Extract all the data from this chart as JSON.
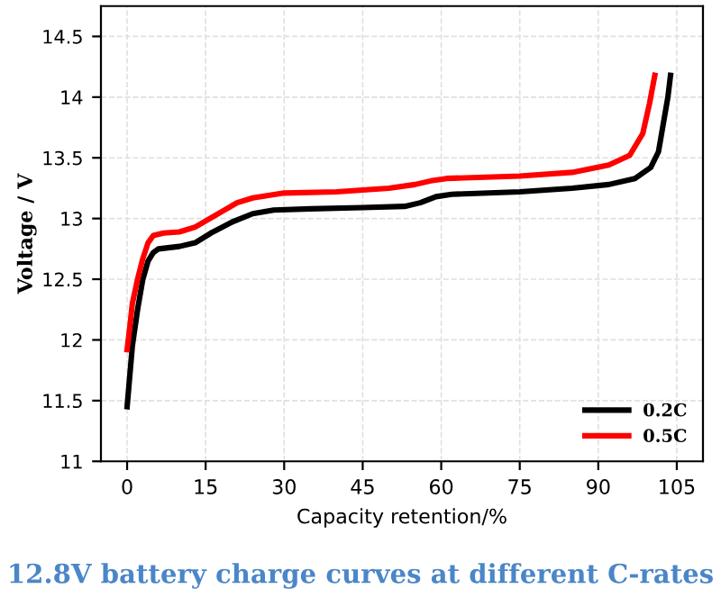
{
  "chart_data": {
    "type": "line",
    "title": "12.8V battery charge curves at different C-rates",
    "xlabel": "Capacity retention/%",
    "ylabel": "Voltage / V",
    "xlim": [
      -5,
      110
    ],
    "xticks": [
      0,
      15,
      30,
      45,
      60,
      75,
      90,
      105
    ],
    "ylim": [
      11,
      14.75
    ],
    "yticks": [
      11,
      11.5,
      12,
      12.5,
      13,
      13.5,
      14,
      14.5
    ],
    "grid": true,
    "legend": "bottom right",
    "line_style": "solid",
    "marker": "none",
    "series": [
      {
        "name": "0.2C",
        "color": "#000000",
        "x": [
          0,
          0.5,
          1,
          2,
          3,
          4,
          5,
          6,
          10,
          13,
          16,
          20,
          24,
          28,
          35,
          45,
          53,
          56,
          59,
          62,
          75,
          85,
          92,
          97,
          100,
          101.5,
          102.5,
          103.3,
          103.8
        ],
        "values": [
          11.45,
          11.7,
          11.95,
          12.25,
          12.5,
          12.65,
          12.72,
          12.75,
          12.77,
          12.8,
          12.88,
          12.97,
          13.04,
          13.07,
          13.08,
          13.09,
          13.1,
          13.13,
          13.18,
          13.2,
          13.22,
          13.25,
          13.28,
          13.33,
          13.42,
          13.55,
          13.8,
          14.0,
          14.18
        ]
      },
      {
        "name": "0.5C",
        "color": "#ff0000",
        "x": [
          0,
          0.5,
          1,
          2,
          3,
          4,
          5,
          7,
          10,
          13,
          17,
          21,
          24,
          30,
          40,
          50,
          55,
          58,
          61,
          75,
          85,
          92,
          96,
          98.5,
          99.8,
          100.8
        ],
        "values": [
          11.92,
          12.1,
          12.3,
          12.5,
          12.67,
          12.8,
          12.86,
          12.88,
          12.89,
          12.93,
          13.03,
          13.13,
          13.17,
          13.21,
          13.22,
          13.25,
          13.28,
          13.31,
          13.33,
          13.35,
          13.38,
          13.44,
          13.52,
          13.7,
          13.95,
          14.18
        ]
      }
    ]
  }
}
